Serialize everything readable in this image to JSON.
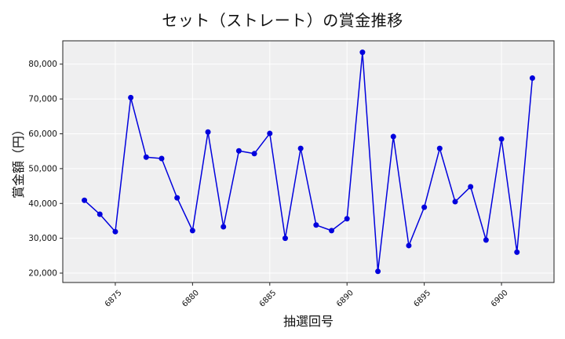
{
  "chart_data": {
    "type": "line",
    "title": "セット（ストレート）の賞金推移",
    "xlabel": "抽選回号",
    "ylabel": "賞金額（円）",
    "x": [
      6873,
      6874,
      6875,
      6876,
      6877,
      6878,
      6879,
      6880,
      6881,
      6882,
      6883,
      6884,
      6885,
      6886,
      6887,
      6888,
      6889,
      6890,
      6891,
      6892,
      6893,
      6894,
      6895,
      6896,
      6897,
      6898,
      6899,
      6900,
      6901,
      6902
    ],
    "series": [
      {
        "name": "賞金額",
        "color": "#0000dd",
        "marker": "circle",
        "values": [
          40900,
          36900,
          31900,
          70400,
          53300,
          52900,
          41600,
          32200,
          60500,
          33300,
          55100,
          54300,
          60100,
          30000,
          55800,
          33800,
          32200,
          35600,
          83400,
          20500,
          59200,
          27900,
          38900,
          55800,
          40500,
          44800,
          29500,
          58500,
          26000,
          76000
        ]
      }
    ],
    "xticks": [
      6875,
      6880,
      6885,
      6890,
      6895,
      6900
    ],
    "xtick_labels": [
      "6875",
      "6880",
      "6885",
      "6890",
      "6895",
      "6900"
    ],
    "yticks": [
      20000,
      30000,
      40000,
      50000,
      60000,
      70000,
      80000
    ],
    "ytick_labels": [
      "20,000",
      "30,000",
      "40,000",
      "50,000",
      "60,000",
      "70,000",
      "80,000"
    ],
    "xlim": [
      6871.6,
      6903.4
    ],
    "ylim": [
      17300,
      86700
    ],
    "grid": true,
    "legend": null,
    "background": "#efeff0",
    "grid_color": "#ffffff"
  }
}
